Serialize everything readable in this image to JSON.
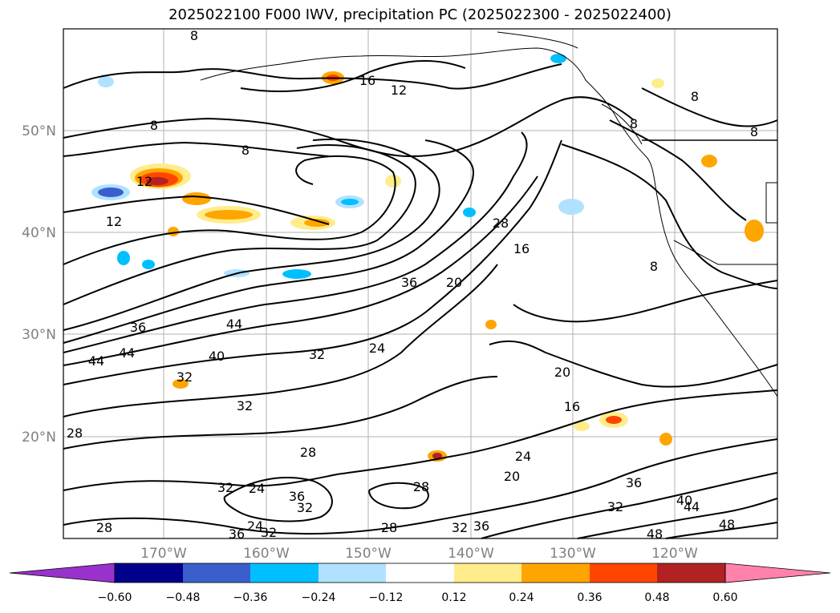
{
  "title": "2025022100 F000 IWV, precipitation PC (2025022300 - 2025022400)",
  "lat_ticks": [
    "50°N",
    "40°N",
    "30°N",
    "20°N"
  ],
  "lon_ticks": [
    "170°W",
    "160°W",
    "150°W",
    "140°W",
    "130°W",
    "120°W"
  ],
  "colorbar": {
    "ticks": [
      "−0.60",
      "−0.48",
      "−0.36",
      "−0.24",
      "−0.12",
      "0.12",
      "0.24",
      "0.36",
      "0.48",
      "0.60"
    ],
    "colors": [
      "#9932cc",
      "#00008b",
      "#3a5fcd",
      "#00bfff",
      "#b0e2ff",
      "#ffffff",
      "#ffec8b",
      "#ffa500",
      "#ff4500",
      "#b22222",
      "#ff82ab"
    ]
  },
  "contour_labels": [
    {
      "text": "8"
    },
    {
      "text": "16"
    },
    {
      "text": "12"
    },
    {
      "text": "8"
    },
    {
      "text": "8"
    },
    {
      "text": "12"
    },
    {
      "text": "12"
    },
    {
      "text": "8"
    },
    {
      "text": "8"
    },
    {
      "text": "8"
    },
    {
      "text": "8"
    },
    {
      "text": "28"
    },
    {
      "text": "16"
    },
    {
      "text": "36"
    },
    {
      "text": "20"
    },
    {
      "text": "44"
    },
    {
      "text": "44"
    },
    {
      "text": "40"
    },
    {
      "text": "32"
    },
    {
      "text": "24"
    },
    {
      "text": "32"
    },
    {
      "text": "32"
    },
    {
      "text": "28"
    },
    {
      "text": "28"
    },
    {
      "text": "24"
    },
    {
      "text": "20"
    },
    {
      "text": "16"
    },
    {
      "text": "20"
    },
    {
      "text": "28"
    },
    {
      "text": "32"
    },
    {
      "text": "24"
    },
    {
      "text": "36"
    },
    {
      "text": "32"
    },
    {
      "text": "28"
    },
    {
      "text": "32"
    },
    {
      "text": "36"
    },
    {
      "text": "36"
    },
    {
      "text": "32"
    },
    {
      "text": "40"
    },
    {
      "text": "44"
    },
    {
      "text": "48"
    },
    {
      "text": "48"
    },
    {
      "text": "28"
    },
    {
      "text": "36"
    },
    {
      "text": "24"
    },
    {
      "text": "32"
    },
    {
      "text": "36"
    },
    {
      "text": "44"
    }
  ]
}
